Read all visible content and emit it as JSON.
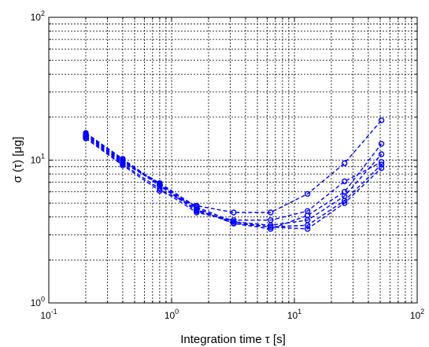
{
  "chart_data": {
    "type": "line",
    "title": "",
    "xlabel": "Integration time τ [s]",
    "ylabel": "σ (τ) [μg]",
    "x_scale": "log",
    "y_scale": "log",
    "xlim": [
      0.1,
      100
    ],
    "ylim": [
      1,
      100
    ],
    "grid": true,
    "x_ticks": [
      {
        "base": "10",
        "exp": "-1"
      },
      {
        "base": "10",
        "exp": "0"
      },
      {
        "base": "10",
        "exp": "1"
      },
      {
        "base": "10",
        "exp": "2"
      }
    ],
    "y_ticks": [
      {
        "base": "10",
        "exp": "0"
      },
      {
        "base": "10",
        "exp": "1"
      },
      {
        "base": "10",
        "exp": "2"
      }
    ],
    "line_color": "#0000ff",
    "x": [
      0.2,
      0.4,
      0.8,
      1.6,
      3.2,
      6.4,
      12.8,
      25.6,
      51.2
    ],
    "series": [
      {
        "values": [
          15.0,
          9.8,
          6.9,
          4.7,
          3.7,
          3.4,
          3.3,
          5.0,
          8.8
        ]
      },
      {
        "values": [
          14.8,
          9.6,
          6.8,
          4.6,
          3.6,
          3.4,
          3.5,
          5.2,
          9.3
        ]
      },
      {
        "values": [
          15.3,
          10.0,
          6.6,
          4.4,
          3.7,
          3.5,
          3.8,
          5.6,
          11.0
        ]
      },
      {
        "values": [
          15.5,
          10.2,
          6.7,
          4.5,
          3.6,
          3.3,
          4.1,
          6.0,
          13.0
        ]
      },
      {
        "values": [
          14.5,
          9.4,
          6.3,
          4.3,
          3.8,
          3.8,
          4.4,
          7.1,
          9.7
        ]
      },
      {
        "values": [
          14.2,
          9.2,
          6.1,
          4.8,
          4.3,
          4.3,
          5.8,
          9.5,
          19.0
        ]
      }
    ]
  }
}
